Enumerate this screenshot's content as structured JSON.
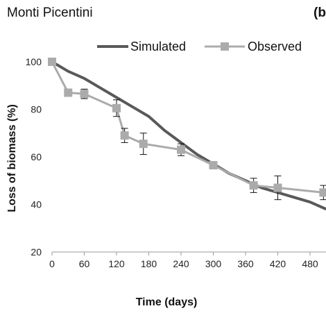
{
  "site_label": "Monti Picentini",
  "panel_label": "(b)",
  "chart_data": {
    "type": "line",
    "title": "",
    "xlabel": "Time (days)",
    "ylabel": "Loss of biomass (%)",
    "xlim": [
      0,
      480
    ],
    "ylim": [
      20,
      100
    ],
    "xticks": [
      0,
      60,
      120,
      180,
      240,
      300,
      360,
      420,
      480
    ],
    "yticks": [
      20,
      40,
      60,
      80,
      100
    ],
    "grid": false,
    "legend": "top-center",
    "series": [
      {
        "name": "Simulated",
        "color": "#595959",
        "x": [
          0,
          30,
          60,
          90,
          120,
          150,
          180,
          210,
          240,
          270,
          300,
          330,
          360,
          390,
          420,
          450,
          480,
          510
        ],
        "y": [
          100,
          96,
          93,
          89,
          85,
          81,
          77,
          71,
          66,
          61,
          57,
          53,
          50,
          47,
          45,
          43,
          41,
          38
        ]
      },
      {
        "name": "Observed",
        "color": "#ababab",
        "x": [
          0,
          30,
          60,
          120,
          135,
          170,
          240,
          300,
          375,
          420,
          505
        ],
        "y": [
          100,
          87,
          86.5,
          80.5,
          69,
          65.5,
          63,
          56.5,
          48,
          47,
          45
        ],
        "err": [
          0,
          1.5,
          2,
          3.5,
          3,
          4.5,
          2.5,
          1.5,
          3,
          5,
          3
        ]
      }
    ]
  }
}
